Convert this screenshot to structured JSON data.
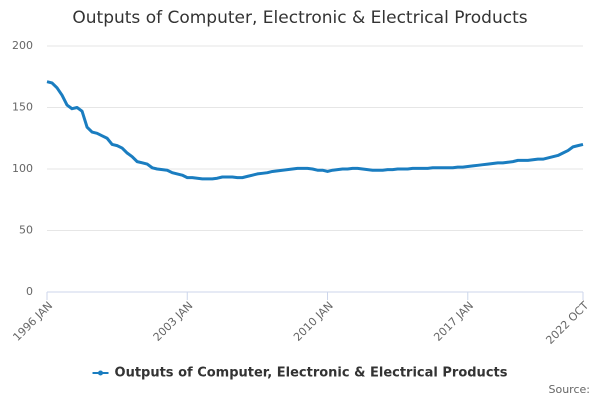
{
  "chart_data": {
    "type": "line",
    "title": "Outputs of Computer, Electronic & Electrical Products",
    "source": "Source:",
    "categories": [
      "1996 JAN",
      null,
      null,
      null,
      null,
      null,
      null,
      null,
      null,
      null,
      null,
      null,
      null,
      null,
      null,
      null,
      null,
      null,
      null,
      null,
      null,
      null,
      null,
      null,
      null,
      null,
      null,
      null,
      "2003 JAN",
      null,
      null,
      null,
      null,
      null,
      null,
      null,
      null,
      null,
      null,
      null,
      null,
      null,
      null,
      null,
      null,
      null,
      null,
      null,
      null,
      null,
      null,
      null,
      null,
      null,
      null,
      null,
      "2010 JAN",
      null,
      null,
      null,
      null,
      null,
      null,
      null,
      null,
      null,
      null,
      null,
      null,
      null,
      null,
      null,
      null,
      null,
      null,
      null,
      null,
      null,
      null,
      null,
      null,
      null,
      null,
      null,
      "2017 JAN",
      null,
      null,
      null,
      null,
      null,
      null,
      null,
      null,
      null,
      null,
      null,
      null,
      null,
      null,
      null,
      null,
      null,
      null,
      null,
      null,
      null,
      null,
      "2022 OCT"
    ],
    "series": [
      {
        "name": "Outputs of Computer, Electronic & Electrical Products",
        "color": "#1a7dc0",
        "values": [
          171,
          170,
          166,
          160,
          152,
          149,
          150,
          147,
          134,
          130,
          129,
          127,
          125,
          120,
          119,
          117,
          113,
          110,
          106,
          105,
          104,
          101,
          100,
          99.5,
          99,
          97,
          96,
          95,
          93,
          93,
          92.5,
          92,
          92,
          92,
          92.5,
          93.5,
          93.5,
          93.5,
          93,
          93,
          94,
          95,
          96,
          96.5,
          97,
          98,
          98.5,
          99,
          99.5,
          100,
          100.5,
          100.5,
          100.5,
          100,
          99,
          99,
          98,
          99,
          99.5,
          100,
          100,
          100.5,
          100.5,
          100,
          99.5,
          99,
          99,
          99,
          99.5,
          99.5,
          100,
          100,
          100,
          100.5,
          100.5,
          100.5,
          100.5,
          101,
          101,
          101,
          101,
          101,
          101.5,
          101.5,
          102,
          102.5,
          103,
          103.5,
          104,
          104.5,
          105,
          105,
          105.5,
          106,
          107,
          107,
          107,
          107.5,
          108,
          108,
          109,
          110,
          111,
          113,
          115,
          118,
          119,
          120
        ]
      }
    ],
    "ylim": [
      0,
      200
    ],
    "yticks": [
      0,
      50,
      100,
      150,
      200
    ],
    "grid": true
  }
}
